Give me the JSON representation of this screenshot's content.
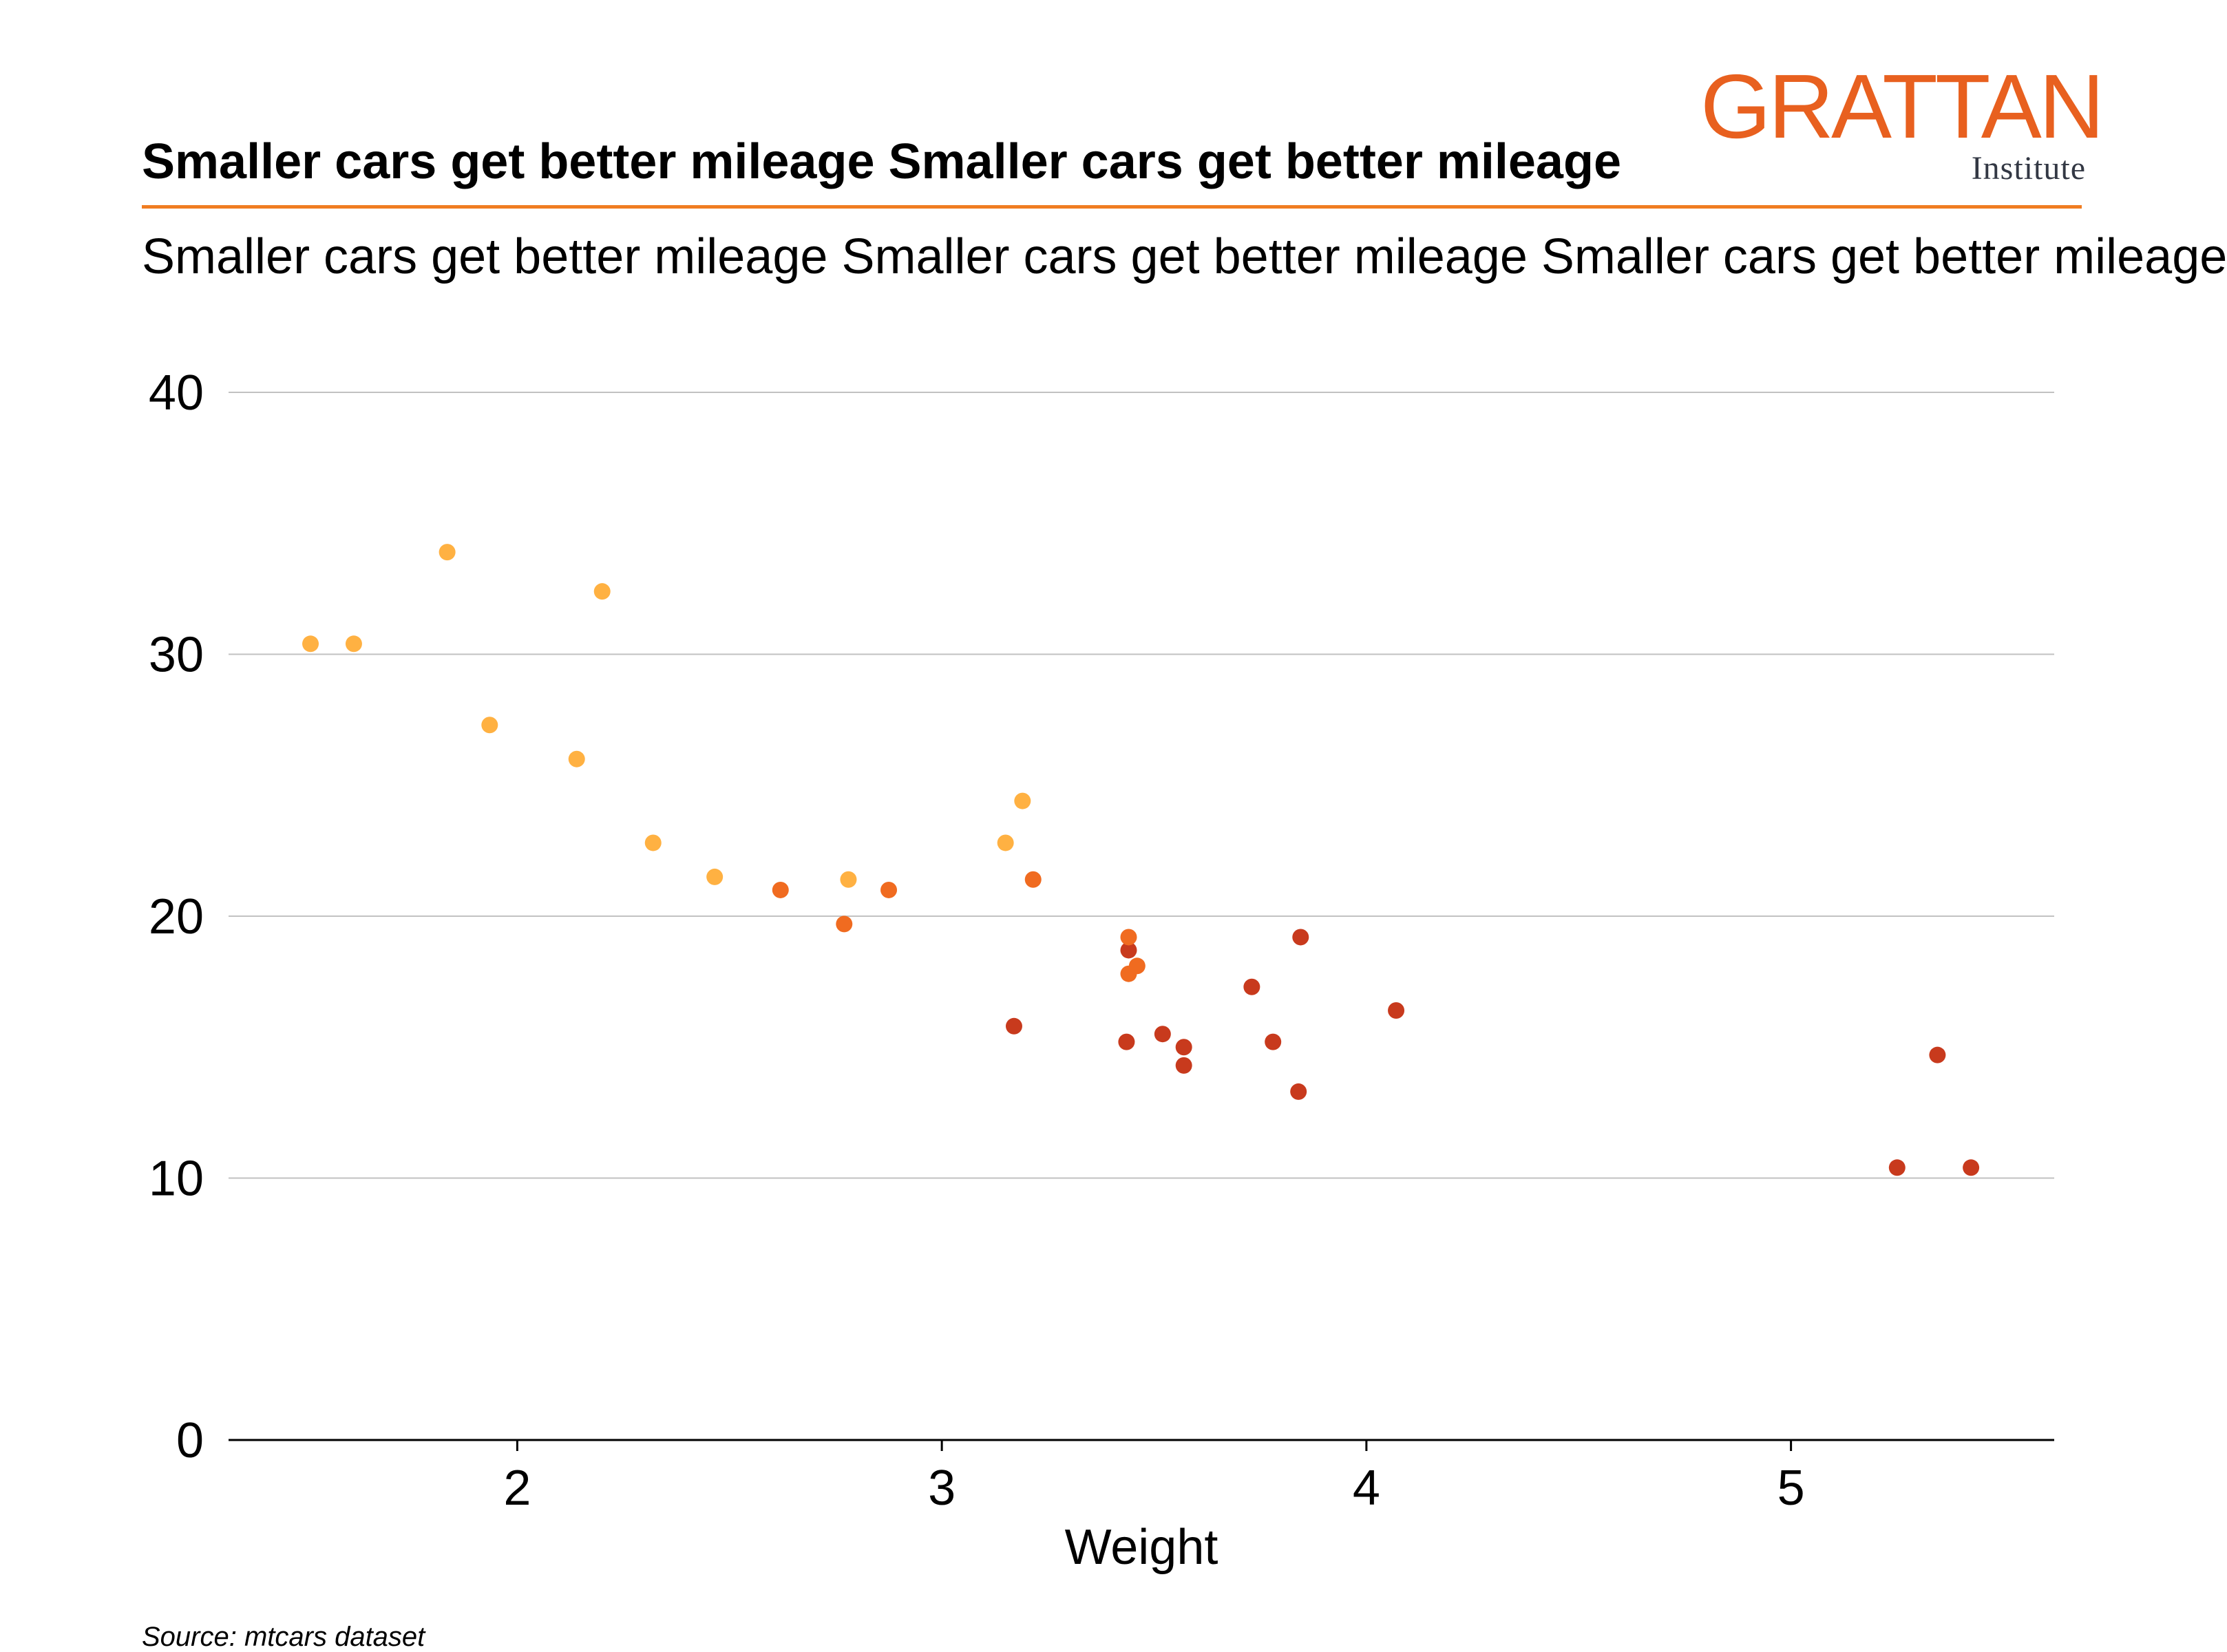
{
  "header": {
    "title": "Smaller cars get better mileage Smaller cars get better mileage",
    "subtitle": "Smaller cars get better mileage Smaller cars get better mileage Smaller cars get better mileage"
  },
  "logo": {
    "name": "GRATTAN",
    "subtitle": "Institute"
  },
  "colors": {
    "accent": "#f07d21",
    "light_orange": "#ffb142",
    "mid_orange": "#f06b20",
    "red": "#c83a1d"
  },
  "footer": {
    "source": "Source: mtcars dataset"
  },
  "chart_data": {
    "type": "scatter",
    "xlabel": "Weight",
    "ylabel": "",
    "xlim": [
      1.32,
      5.62
    ],
    "ylim": [
      0,
      40
    ],
    "x_ticks": [
      2,
      3,
      4,
      5
    ],
    "y_ticks": [
      0,
      10,
      20,
      30,
      40
    ],
    "grid": "horizontal",
    "points": [
      {
        "x": 1.513,
        "y": 30.4,
        "color": "#ffb142"
      },
      {
        "x": 1.615,
        "y": 30.4,
        "color": "#ffb142"
      },
      {
        "x": 1.835,
        "y": 33.9,
        "color": "#ffb142"
      },
      {
        "x": 1.935,
        "y": 27.3,
        "color": "#ffb142"
      },
      {
        "x": 2.14,
        "y": 26.0,
        "color": "#ffb142"
      },
      {
        "x": 2.2,
        "y": 32.4,
        "color": "#ffb142"
      },
      {
        "x": 2.32,
        "y": 22.8,
        "color": "#ffb142"
      },
      {
        "x": 2.465,
        "y": 21.5,
        "color": "#ffb142"
      },
      {
        "x": 2.62,
        "y": 21.0,
        "color": "#f06b20"
      },
      {
        "x": 2.77,
        "y": 19.7,
        "color": "#f06b20"
      },
      {
        "x": 2.78,
        "y": 21.4,
        "color": "#ffb142"
      },
      {
        "x": 2.875,
        "y": 21.0,
        "color": "#f06b20"
      },
      {
        "x": 3.15,
        "y": 22.8,
        "color": "#ffb142"
      },
      {
        "x": 3.17,
        "y": 15.8,
        "color": "#c83a1d"
      },
      {
        "x": 3.19,
        "y": 24.4,
        "color": "#ffb142"
      },
      {
        "x": 3.215,
        "y": 21.4,
        "color": "#f06b20"
      },
      {
        "x": 3.435,
        "y": 15.2,
        "color": "#c83a1d"
      },
      {
        "x": 3.44,
        "y": 18.7,
        "color": "#c83a1d"
      },
      {
        "x": 3.44,
        "y": 19.2,
        "color": "#f06b20"
      },
      {
        "x": 3.44,
        "y": 17.8,
        "color": "#f06b20"
      },
      {
        "x": 3.46,
        "y": 18.1,
        "color": "#f06b20"
      },
      {
        "x": 3.52,
        "y": 15.5,
        "color": "#c83a1d"
      },
      {
        "x": 3.57,
        "y": 15.0,
        "color": "#c83a1d"
      },
      {
        "x": 3.57,
        "y": 14.3,
        "color": "#c83a1d"
      },
      {
        "x": 3.73,
        "y": 17.3,
        "color": "#c83a1d"
      },
      {
        "x": 3.78,
        "y": 15.2,
        "color": "#c83a1d"
      },
      {
        "x": 3.84,
        "y": 13.3,
        "color": "#c83a1d"
      },
      {
        "x": 3.845,
        "y": 19.2,
        "color": "#c83a1d"
      },
      {
        "x": 4.07,
        "y": 16.4,
        "color": "#c83a1d"
      },
      {
        "x": 5.25,
        "y": 10.4,
        "color": "#c83a1d"
      },
      {
        "x": 5.345,
        "y": 14.7,
        "color": "#c83a1d"
      },
      {
        "x": 5.424,
        "y": 10.4,
        "color": "#c83a1d"
      }
    ]
  }
}
